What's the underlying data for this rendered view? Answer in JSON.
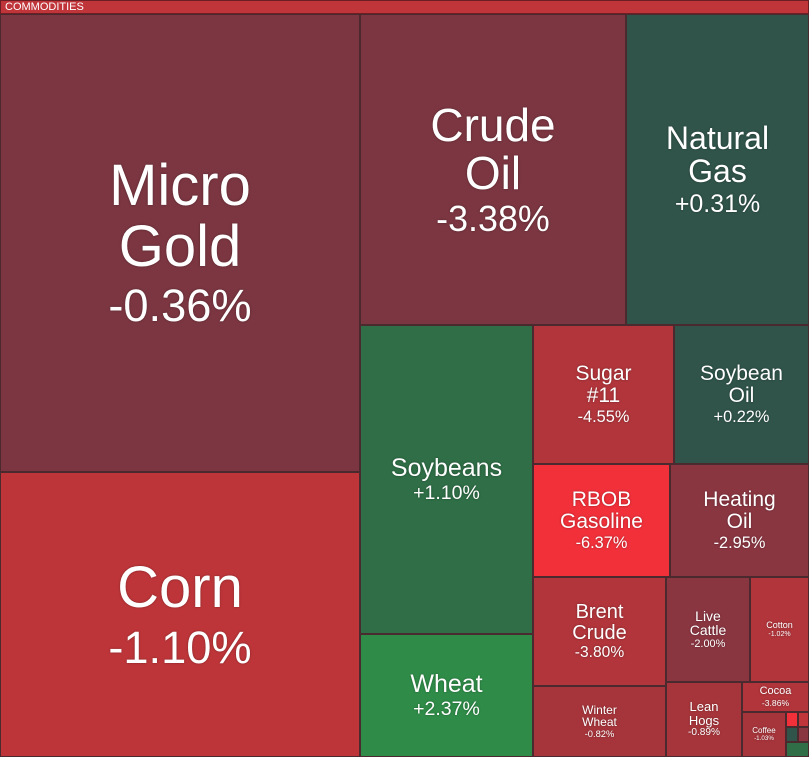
{
  "header": {
    "title": "COMMODITIES",
    "color": "#c0353a"
  },
  "tiles": [
    {
      "name": [
        "Micro",
        "Gold"
      ],
      "change": "-0.36%",
      "color": "#7b3641"
    },
    {
      "name": [
        "Corn"
      ],
      "change": "-1.10%",
      "color": "#bd3539"
    },
    {
      "name": [
        "Crude",
        "Oil"
      ],
      "change": "-3.38%",
      "color": "#7b3641"
    },
    {
      "name": [
        "Natural",
        "Gas"
      ],
      "change": "+0.31%",
      "color": "#30544a"
    },
    {
      "name": [
        "Soybeans"
      ],
      "change": "+1.10%",
      "color": "#2f6e46"
    },
    {
      "name": [
        "Wheat"
      ],
      "change": "+2.37%",
      "color": "#2f8c48"
    },
    {
      "name": [
        "Sugar",
        "#11"
      ],
      "change": "-4.55%",
      "color": "#b1353b"
    },
    {
      "name": [
        "Soybean",
        "Oil"
      ],
      "change": "+0.22%",
      "color": "#30544a"
    },
    {
      "name": [
        "RBOB",
        "Gasoline"
      ],
      "change": "-6.37%",
      "color": "#f1303a"
    },
    {
      "name": [
        "Heating",
        "Oil"
      ],
      "change": "-2.95%",
      "color": "#8a3641"
    },
    {
      "name": [
        "Brent",
        "Crude"
      ],
      "change": "-3.80%",
      "color": "#b1353b"
    },
    {
      "name": [
        "Winter",
        "Wheat"
      ],
      "change": "-0.82%",
      "color": "#a6353b"
    },
    {
      "name": [
        "Live",
        "Cattle"
      ],
      "change": "-2.00%",
      "color": "#8a3641"
    },
    {
      "name": [
        "Cotton"
      ],
      "change": "-1.02%",
      "color": "#b1353b"
    },
    {
      "name": [
        "Lean",
        "Hogs"
      ],
      "change": "-0.89%",
      "color": "#a6353b"
    },
    {
      "name": [
        "Cocoa"
      ],
      "change": "-3.86%",
      "color": "#b1353b"
    },
    {
      "name": [
        "Coffee"
      ],
      "change": "-1.03%",
      "color": "#a6353b"
    }
  ]
}
